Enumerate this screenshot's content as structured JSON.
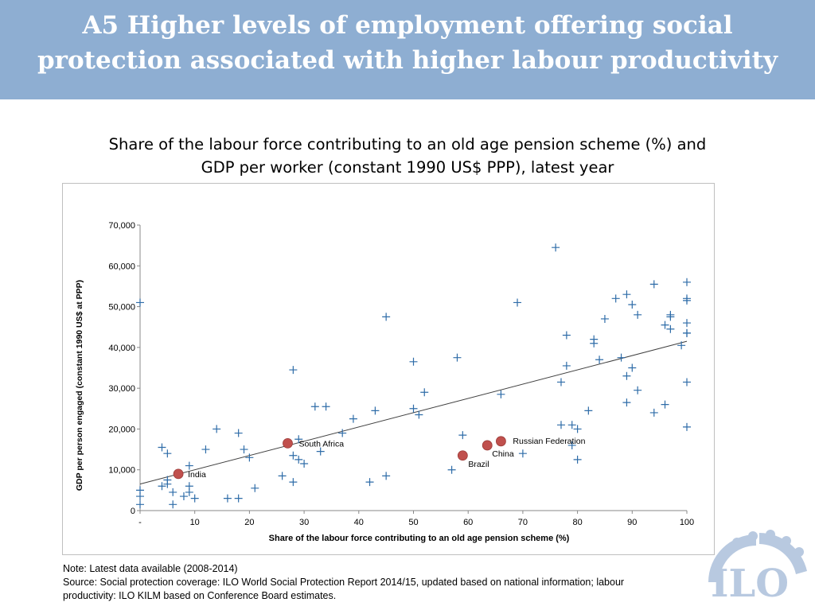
{
  "header": {
    "title_line1": "A5   Higher levels of employment offering social",
    "title_line2": "protection associated with higher labour productivity"
  },
  "subtitle": {
    "line1": "Share of the labour force contributing to an old age pension scheme (%) and",
    "line2": "GDP per worker (constant 1990 US$ PPP), latest year"
  },
  "notes": {
    "line1": "Note:  Latest data available (2008-2014)",
    "line2": "Source: Social protection coverage: ILO World Social Protection Report 2014/15, updated based on national information; labour",
    "line3": "productivity: ILO KILM based on Conference Board estimates."
  },
  "logo": {
    "text": "ILO"
  },
  "colors": {
    "header_bg": "#8eaed2",
    "marker": "#2e6ca8",
    "highlight": "#c0504d",
    "trendline": "#404040"
  },
  "chart_data": {
    "type": "scatter",
    "xlabel": "Share of the labour force contributing to an old age pension scheme (%)",
    "ylabel": "GDP per person engaged (constant 1990 US$ at PPP)",
    "xlim": [
      0,
      100
    ],
    "ylim": [
      0,
      70000
    ],
    "x_ticks": [
      "-",
      "10",
      "20",
      "30",
      "40",
      "50",
      "60",
      "70",
      "80",
      "90",
      "100"
    ],
    "y_ticks": [
      "0",
      "10,000",
      "20,000",
      "30,000",
      "40,000",
      "50,000",
      "60,000",
      "70,000"
    ],
    "grid": false,
    "trendline": {
      "x": [
        0,
        100
      ],
      "y": [
        6500,
        41500
      ]
    },
    "points": [
      [
        0,
        51000
      ],
      [
        0,
        5000
      ],
      [
        0,
        3500
      ],
      [
        0,
        1500
      ],
      [
        4,
        15500
      ],
      [
        5,
        14000
      ],
      [
        4,
        6000
      ],
      [
        5,
        6500
      ],
      [
        5,
        7500
      ],
      [
        6,
        4500
      ],
      [
        6,
        1500
      ],
      [
        8,
        3500
      ],
      [
        9,
        11000
      ],
      [
        9,
        6000
      ],
      [
        9,
        4500
      ],
      [
        10,
        3000
      ],
      [
        12,
        15000
      ],
      [
        14,
        20000
      ],
      [
        16,
        3000
      ],
      [
        18,
        3000
      ],
      [
        18,
        19000
      ],
      [
        19,
        15000
      ],
      [
        20,
        13000
      ],
      [
        21,
        5500
      ],
      [
        26,
        8500
      ],
      [
        28,
        34500
      ],
      [
        28,
        13500
      ],
      [
        28,
        7000
      ],
      [
        29,
        12500
      ],
      [
        30,
        11500
      ],
      [
        29,
        17500
      ],
      [
        32,
        25500
      ],
      [
        33,
        14500
      ],
      [
        34,
        25500
      ],
      [
        37,
        19000
      ],
      [
        39,
        22500
      ],
      [
        42,
        7000
      ],
      [
        43,
        24500
      ],
      [
        45,
        47500
      ],
      [
        45,
        8500
      ],
      [
        50,
        36500
      ],
      [
        50,
        25000
      ],
      [
        51,
        23500
      ],
      [
        52,
        29000
      ],
      [
        57,
        10000
      ],
      [
        58,
        37500
      ],
      [
        59,
        18500
      ],
      [
        66,
        28500
      ],
      [
        69,
        51000
      ],
      [
        70,
        14000
      ],
      [
        76,
        64500
      ],
      [
        77,
        31500
      ],
      [
        77,
        21000
      ],
      [
        78,
        35500
      ],
      [
        78,
        43000
      ],
      [
        79,
        21000
      ],
      [
        79,
        16000
      ],
      [
        80,
        20000
      ],
      [
        80,
        12500
      ],
      [
        82,
        24500
      ],
      [
        83,
        42000
      ],
      [
        83,
        41000
      ],
      [
        84,
        37000
      ],
      [
        85,
        47000
      ],
      [
        87,
        52000
      ],
      [
        88,
        37500
      ],
      [
        89,
        53000
      ],
      [
        89,
        26500
      ],
      [
        89,
        33000
      ],
      [
        90,
        35000
      ],
      [
        90,
        50500
      ],
      [
        91,
        48000
      ],
      [
        91,
        29500
      ],
      [
        94,
        55500
      ],
      [
        94,
        24000
      ],
      [
        96,
        26000
      ],
      [
        96,
        45500
      ],
      [
        97,
        48000
      ],
      [
        97,
        47500
      ],
      [
        97,
        44500
      ],
      [
        99,
        40500
      ],
      [
        100,
        56000
      ],
      [
        100,
        52000
      ],
      [
        100,
        51500
      ],
      [
        100,
        46000
      ],
      [
        100,
        43500
      ],
      [
        100,
        43500
      ],
      [
        100,
        31500
      ],
      [
        100,
        20500
      ]
    ],
    "highlighted": [
      {
        "name": "India",
        "x": 7,
        "y": 9000
      },
      {
        "name": "South Africa",
        "x": 27,
        "y": 16500
      },
      {
        "name": "Brazil",
        "x": 59,
        "y": 13500
      },
      {
        "name": "China",
        "x": 63.5,
        "y": 16000
      },
      {
        "name": "Russian Federation",
        "x": 66,
        "y": 17000
      }
    ]
  }
}
